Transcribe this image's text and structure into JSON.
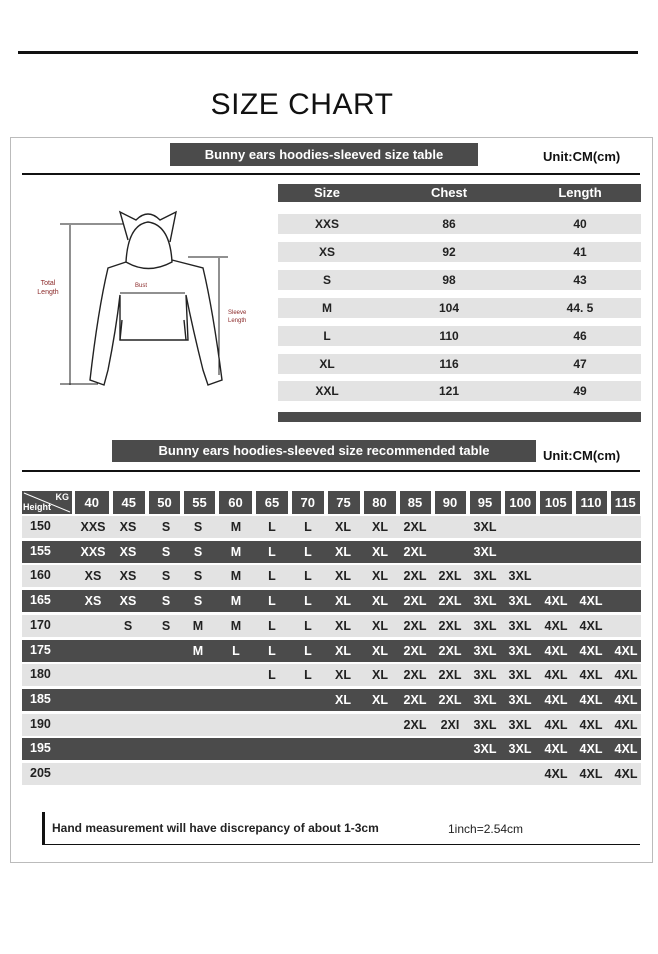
{
  "title": "SIZE CHART",
  "size_table": {
    "heading": "Bunny ears hoodies-sleeved size  table",
    "unit": "Unit:CM(cm)",
    "columns": [
      "Size",
      "Chest",
      "Length"
    ],
    "rows": [
      [
        "XXS",
        "86",
        "40"
      ],
      [
        "XS",
        "92",
        "41"
      ],
      [
        "S",
        "98",
        "43"
      ],
      [
        "M",
        "104",
        "44. 5"
      ],
      [
        "L",
        "110",
        "46"
      ],
      [
        "XL",
        "116",
        "47"
      ],
      [
        "XXL",
        "121",
        "49"
      ]
    ]
  },
  "diagram": {
    "total_length_label": "Total Length",
    "bust_label": "Bust",
    "sleeve_length_label": "Sleeve Length",
    "label_color": "#8b2a2a"
  },
  "recommended_table": {
    "heading": "Bunny ears hoodies-sleeved size recommended table",
    "unit": "Unit:CM(cm)",
    "corner_kg": "KG",
    "corner_height": "Height",
    "weights": [
      "40",
      "45",
      "50",
      "55",
      "60",
      "65",
      "70",
      "75",
      "80",
      "85",
      "90",
      "95",
      "100",
      "105",
      "110",
      "115"
    ],
    "rows": [
      {
        "height": "150",
        "sizes": [
          "XXS",
          "XS",
          "S",
          "S",
          "M",
          "L",
          "L",
          "XL",
          "XL",
          "2XL",
          "",
          "3XL",
          "",
          "",
          "",
          ""
        ]
      },
      {
        "height": "155",
        "sizes": [
          "XXS",
          "XS",
          "S",
          "S",
          "M",
          "L",
          "L",
          "XL",
          "XL",
          "2XL",
          "",
          "3XL",
          "",
          "",
          "",
          ""
        ]
      },
      {
        "height": "160",
        "sizes": [
          "XS",
          "XS",
          "S",
          "S",
          "M",
          "L",
          "L",
          "XL",
          "XL",
          "2XL",
          "2XL",
          "3XL",
          "3XL",
          "",
          "",
          ""
        ]
      },
      {
        "height": "165",
        "sizes": [
          "XS",
          "XS",
          "S",
          "S",
          "M",
          "L",
          "L",
          "XL",
          "XL",
          "2XL",
          "2XL",
          "3XL",
          "3XL",
          "4XL",
          "4XL",
          ""
        ]
      },
      {
        "height": "170",
        "sizes": [
          "",
          "S",
          "S",
          "M",
          "M",
          "L",
          "L",
          "XL",
          "XL",
          "2XL",
          "2XL",
          "3XL",
          "3XL",
          "4XL",
          "4XL",
          ""
        ]
      },
      {
        "height": "175",
        "sizes": [
          "",
          "",
          "",
          "M",
          "L",
          "L",
          "L",
          "XL",
          "XL",
          "2XL",
          "2XL",
          "3XL",
          "3XL",
          "4XL",
          "4XL",
          "4XL"
        ]
      },
      {
        "height": "180",
        "sizes": [
          "",
          "",
          "",
          "",
          "",
          "L",
          "L",
          "XL",
          "XL",
          "2XL",
          "2XL",
          "3XL",
          "3XL",
          "4XL",
          "4XL",
          "4XL"
        ]
      },
      {
        "height": "185",
        "sizes": [
          "",
          "",
          "",
          "",
          "",
          "",
          "",
          "XL",
          "XL",
          "2XL",
          "2XL",
          "3XL",
          "3XL",
          "4XL",
          "4XL",
          "4XL"
        ]
      },
      {
        "height": "190",
        "sizes": [
          "",
          "",
          "",
          "",
          "",
          "",
          "",
          "",
          "",
          "2XL",
          "2XI",
          "3XL",
          "3XL",
          "4XL",
          "4XL",
          "4XL"
        ]
      },
      {
        "height": "195",
        "sizes": [
          "",
          "",
          "",
          "",
          "",
          "",
          "",
          "",
          "",
          "",
          "",
          "3XL",
          "3XL",
          "4XL",
          "4XL",
          "4XL"
        ]
      },
      {
        "height": "205",
        "sizes": [
          "",
          "",
          "",
          "",
          "",
          "",
          "",
          "",
          "",
          "",
          "",
          "",
          "",
          "4XL",
          "4XL",
          "4XL"
        ]
      }
    ]
  },
  "footer": {
    "note": "Hand measurement will have discrepancy of about  1-3cm",
    "conversion": "1inch=2.54cm"
  },
  "colors": {
    "dark_bar": "#4b4b4b",
    "light_row": "#e3e3e3"
  }
}
